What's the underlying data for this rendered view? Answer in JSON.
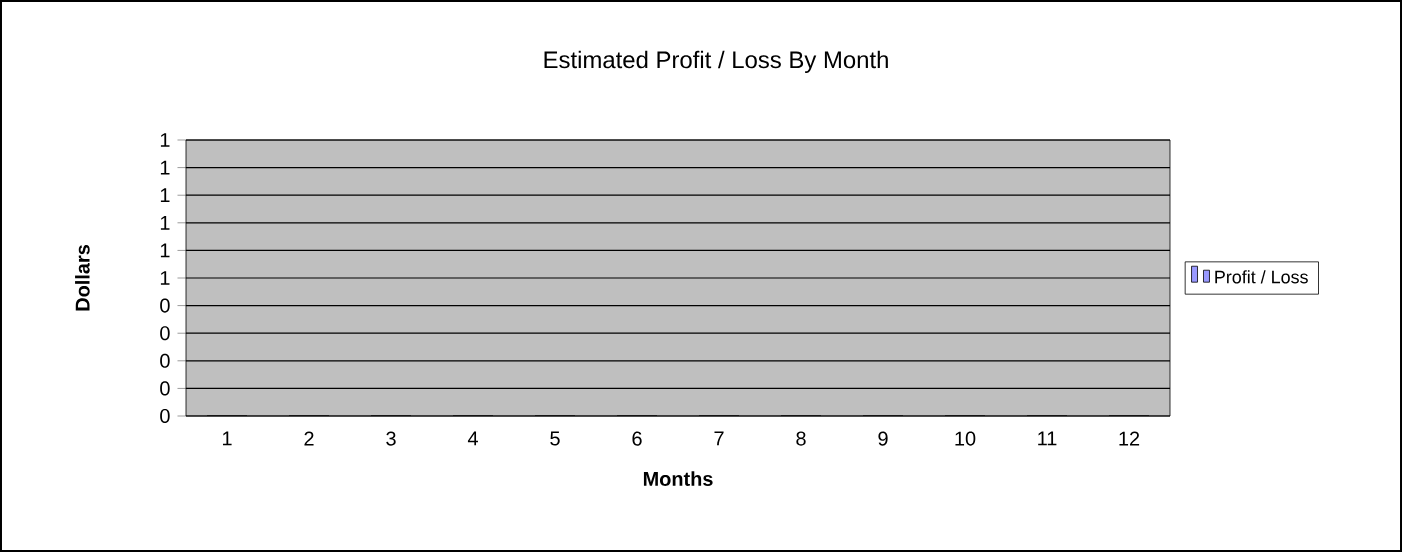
{
  "chart_data": {
    "type": "bar",
    "title": "Estimated Profit / Loss By Month",
    "xlabel": "Months",
    "ylabel": "Dollars",
    "categories": [
      "1",
      "2",
      "3",
      "4",
      "5",
      "6",
      "7",
      "8",
      "9",
      "10",
      "11",
      "12"
    ],
    "series": [
      {
        "name": "Profit / Loss",
        "color": "#9999ff",
        "values": [
          0,
          0,
          0,
          0,
          0,
          0,
          0,
          0,
          0,
          0,
          0,
          0
        ]
      }
    ],
    "ylim": [
      0,
      1
    ],
    "yticks": [
      {
        "value": 0,
        "label": "0"
      },
      {
        "value": 0.1,
        "label": "0"
      },
      {
        "value": 0.2,
        "label": "0"
      },
      {
        "value": 0.3,
        "label": "0"
      },
      {
        "value": 0.4,
        "label": "0"
      },
      {
        "value": 0.5,
        "label": "1"
      },
      {
        "value": 0.6,
        "label": "1"
      },
      {
        "value": 0.7,
        "label": "1"
      },
      {
        "value": 0.8,
        "label": "1"
      },
      {
        "value": 0.9,
        "label": "1"
      },
      {
        "value": 1,
        "label": "1"
      }
    ],
    "grid": "y",
    "legend": "right"
  }
}
